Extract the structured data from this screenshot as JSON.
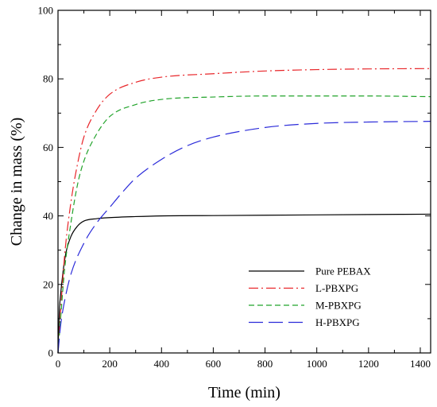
{
  "chart_data": {
    "type": "line",
    "xlabel": "Time (min)",
    "ylabel": "Change in mass (%)",
    "xlim": [
      0,
      1440
    ],
    "ylim": [
      0,
      100
    ],
    "x_ticks": [
      "0",
      "200",
      "400",
      "600",
      "800",
      "1000",
      "1200",
      "1400"
    ],
    "y_ticks": [
      "0",
      "20",
      "40",
      "60",
      "80",
      "100"
    ],
    "grid": false,
    "legend_position": "bottom-right",
    "series": [
      {
        "name": "Pure PEBAX",
        "color": "#000000",
        "dash": "solid",
        "x": [
          0,
          5,
          10,
          20,
          30,
          50,
          75,
          100,
          150,
          200,
          300,
          400,
          600,
          800,
          1000,
          1200,
          1440
        ],
        "y": [
          0,
          12,
          17,
          24,
          29,
          34,
          37,
          38.5,
          39.2,
          39.5,
          39.8,
          40,
          40.1,
          40.2,
          40.3,
          40.4,
          40.5
        ]
      },
      {
        "name": "L-PBXPG",
        "color": "#e8262a",
        "dash": "dashdot",
        "x": [
          0,
          10,
          25,
          50,
          75,
          100,
          150,
          200,
          300,
          400,
          600,
          800,
          1000,
          1200,
          1440
        ],
        "y": [
          0,
          12,
          28,
          44,
          55,
          63,
          71,
          75.5,
          79,
          80.5,
          81.5,
          82.3,
          82.7,
          82.9,
          83
        ]
      },
      {
        "name": "M-PBXPG",
        "color": "#21a32a",
        "dash": "dash",
        "x": [
          0,
          10,
          25,
          50,
          75,
          100,
          150,
          200,
          300,
          400,
          600,
          800,
          1000,
          1200,
          1440
        ],
        "y": [
          0,
          10,
          24,
          38,
          49,
          56,
          64,
          69,
          72.5,
          74,
          74.7,
          75,
          75,
          75,
          74.8
        ]
      },
      {
        "name": "H-PBXPG",
        "color": "#2a2ad9",
        "dash": "longdash",
        "x": [
          0,
          10,
          25,
          50,
          100,
          150,
          200,
          250,
          300,
          400,
          500,
          600,
          800,
          1000,
          1200,
          1440
        ],
        "y": [
          0,
          8,
          15,
          23,
          32,
          38,
          42.5,
          47,
          51,
          56.5,
          60.5,
          63,
          65.8,
          67,
          67.4,
          67.6
        ]
      }
    ]
  }
}
